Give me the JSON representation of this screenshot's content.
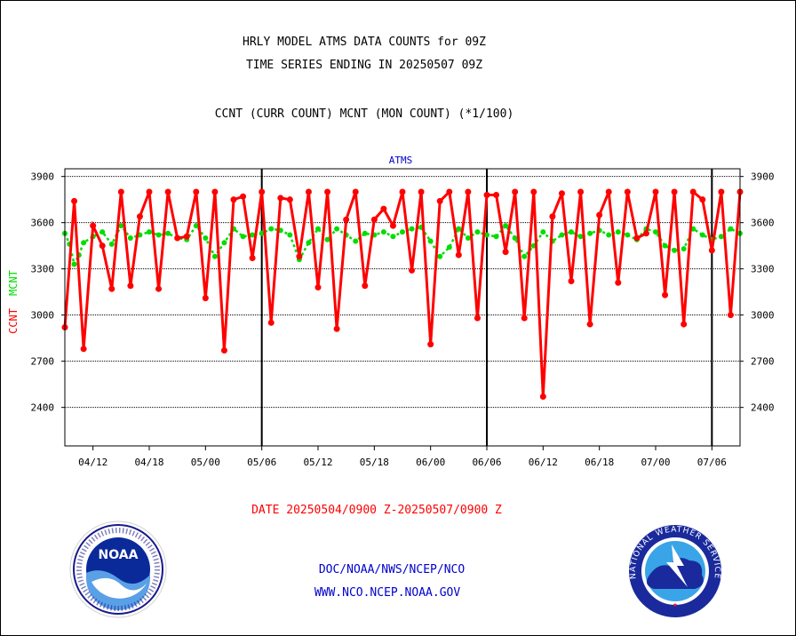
{
  "header": {
    "title_line1": "HRLY MODEL ATMS DATA COUNTS for 09Z",
    "title_line2": "TIME SERIES ENDING IN 20250507 09Z",
    "subtitle": "CCNT (CURR COUNT) MCNT (MON COUNT) (*1/100)"
  },
  "footer": {
    "date_range": "DATE 20250504/0900 Z-20250507/0900 Z",
    "link1": "DOC/NOAA/NWS/NCEP/NCO",
    "link2": "WWW.NCO.NCEP.NOAA.GOV",
    "noaa_logo_text": "NOAA",
    "nws_logo_text": "NATIONAL WEATHER SERVICE"
  },
  "colors": {
    "ccnt": "#ff0000",
    "mcnt": "#00dd00",
    "axis": "#000000",
    "label_blue": "#0000cc"
  },
  "chart_data": {
    "type": "line",
    "title": "ATMS",
    "ylabel_ccnt": "CCNT",
    "ylabel_mcnt": "MCNT",
    "ylim": [
      2150,
      3950
    ],
    "yticks": [
      2400,
      2700,
      3000,
      3300,
      3600,
      3900
    ],
    "x_ticks": [
      "04/12",
      "04/18",
      "05/00",
      "05/06",
      "05/12",
      "05/18",
      "06/00",
      "06/06",
      "06/12",
      "06/18",
      "07/00",
      "07/06"
    ],
    "x_tick_positions": [
      10,
      16,
      22,
      28,
      34,
      40,
      46,
      52,
      58,
      64,
      70,
      76
    ],
    "day_boundaries": [
      28,
      52,
      76
    ],
    "xlim": [
      7,
      79
    ],
    "grid": true,
    "series": [
      {
        "name": "CCNT",
        "x": [
          7,
          8,
          9,
          10,
          11,
          12,
          13,
          14,
          15,
          16,
          17,
          18,
          19,
          20,
          21,
          22,
          23,
          24,
          25,
          26,
          27,
          28,
          29,
          30,
          31,
          32,
          33,
          34,
          35,
          36,
          37,
          38,
          39,
          40,
          41,
          42,
          43,
          44,
          45,
          46,
          47,
          48,
          49,
          50,
          51,
          52,
          53,
          54,
          55,
          56,
          57,
          58,
          59,
          60,
          61,
          62,
          63,
          64,
          65,
          66,
          67,
          68,
          69,
          70,
          71,
          72,
          73,
          74,
          75,
          76,
          77,
          78,
          79
        ],
        "values": [
          2920,
          3740,
          2780,
          3580,
          3450,
          3170,
          3800,
          3190,
          3640,
          3800,
          3170,
          3800,
          3500,
          3510,
          3800,
          3110,
          3800,
          2770,
          3750,
          3770,
          3370,
          3800,
          2950,
          3760,
          3750,
          3380,
          3800,
          3180,
          3800,
          2910,
          3620,
          3800,
          3190,
          3620,
          3690,
          3580,
          3800,
          3290,
          3800,
          2810,
          3740,
          3800,
          3390,
          3800,
          2980,
          3780,
          3780,
          3410,
          3800,
          2980,
          3800,
          2470,
          3640,
          3790,
          3220,
          3800,
          2940,
          3650,
          3800,
          3210,
          3800,
          3500,
          3530,
          3800,
          3130,
          3800,
          2940,
          3800,
          3750,
          3420,
          3800,
          3000,
          3800
        ]
      },
      {
        "name": "MCNT",
        "x": [
          7,
          7.5,
          8,
          8.5,
          9,
          10,
          11,
          12,
          13,
          14,
          15,
          16,
          17,
          18,
          19,
          20,
          21,
          22,
          23,
          24,
          25,
          26,
          27,
          28,
          29,
          30,
          31,
          32,
          33,
          34,
          35,
          36,
          37,
          38,
          39,
          40,
          41,
          42,
          43,
          44,
          45,
          46,
          47,
          48,
          49,
          50,
          51,
          52,
          53,
          54,
          55,
          56,
          57,
          58,
          59,
          60,
          61,
          62,
          63,
          64,
          65,
          66,
          67,
          68,
          69,
          70,
          71,
          72,
          73,
          74,
          75,
          76,
          77,
          78,
          79
        ],
        "values": [
          3530,
          3460,
          3330,
          3390,
          3470,
          3510,
          3540,
          3460,
          3580,
          3500,
          3520,
          3540,
          3520,
          3530,
          3500,
          3490,
          3580,
          3500,
          3380,
          3470,
          3560,
          3510,
          3520,
          3530,
          3560,
          3550,
          3520,
          3360,
          3470,
          3560,
          3490,
          3560,
          3520,
          3480,
          3530,
          3520,
          3540,
          3510,
          3540,
          3560,
          3570,
          3480,
          3380,
          3440,
          3560,
          3500,
          3540,
          3520,
          3510,
          3580,
          3500,
          3380,
          3450,
          3540,
          3480,
          3520,
          3540,
          3510,
          3530,
          3550,
          3520,
          3540,
          3520,
          3490,
          3560,
          3540,
          3450,
          3420,
          3430,
          3560,
          3520,
          3490,
          3510,
          3560,
          3530
        ]
      }
    ]
  }
}
